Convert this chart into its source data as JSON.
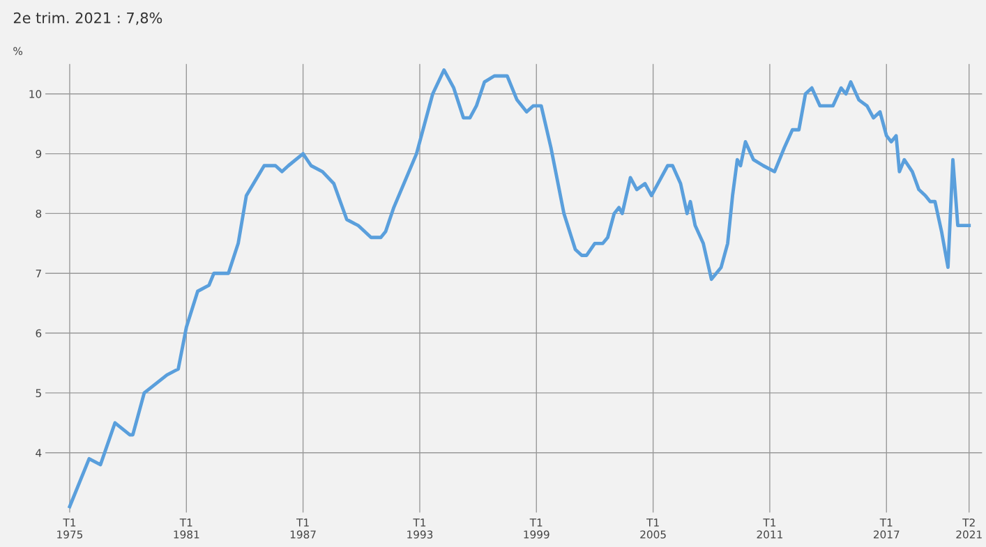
{
  "chart_data": {
    "type": "line",
    "title": "2e trim. 2021 : 7,8%",
    "ylabel": "%",
    "x": [
      "1975-01",
      "1976-01",
      "1976-08",
      "1977-05",
      "1978-02",
      "1978-04",
      "1978-11",
      "1980-01",
      "1980-08",
      "1981-01",
      "1981-08",
      "1982-03",
      "1982-06",
      "1983-03",
      "1983-09",
      "1984-02",
      "1985-01",
      "1985-08",
      "1985-12",
      "1986-04",
      "1987-01",
      "1987-06",
      "1988-01",
      "1988-08",
      "1989-04",
      "1989-11",
      "1990-07",
      "1991-01",
      "1991-04",
      "1991-09",
      "1992-11",
      "1993-09",
      "1994-04",
      "1994-10",
      "1995-04",
      "1995-08",
      "1995-12",
      "1996-05",
      "1996-11",
      "1997-07",
      "1998-01",
      "1998-07",
      "1998-11",
      "1999-04",
      "1999-10",
      "2000-06",
      "2001-01",
      "2001-05",
      "2001-08",
      "2002-01",
      "2002-06",
      "2002-09",
      "2003-01",
      "2003-04",
      "2003-06",
      "2003-11",
      "2004-03",
      "2004-08",
      "2004-12",
      "2005-10",
      "2006-01",
      "2006-06",
      "2006-10",
      "2006-12",
      "2007-03",
      "2007-08",
      "2008-01",
      "2008-07",
      "2008-11",
      "2009-02",
      "2009-05",
      "2009-07",
      "2009-10",
      "2010-03",
      "2010-09",
      "2011-04",
      "2011-10",
      "2012-03",
      "2012-07",
      "2012-11",
      "2013-03",
      "2013-08",
      "2014-04",
      "2014-09",
      "2014-12",
      "2015-03",
      "2015-08",
      "2016-01",
      "2016-05",
      "2016-09",
      "2017-01",
      "2017-04",
      "2017-07",
      "2017-09",
      "2017-12",
      "2018-05",
      "2018-09",
      "2019-01",
      "2019-04",
      "2019-07",
      "2019-11",
      "2020-03",
      "2020-06",
      "2020-09",
      "2021-04"
    ],
    "series": [
      {
        "color": "#5a9fdc",
        "values": [
          3.1,
          3.9,
          3.8,
          4.5,
          4.3,
          4.3,
          5.0,
          5.3,
          5.4,
          6.1,
          6.7,
          6.8,
          7.0,
          7.0,
          7.5,
          8.3,
          8.8,
          8.8,
          8.7,
          8.8,
          9.0,
          8.8,
          8.7,
          8.5,
          7.9,
          7.8,
          7.6,
          7.6,
          7.7,
          8.1,
          9.0,
          10.0,
          10.4,
          10.1,
          9.6,
          9.6,
          9.8,
          10.2,
          10.3,
          10.3,
          9.9,
          9.7,
          9.8,
          9.8,
          9.1,
          8.0,
          7.4,
          7.3,
          7.3,
          7.5,
          7.5,
          7.6,
          8.0,
          8.1,
          8.0,
          8.6,
          8.4,
          8.5,
          8.3,
          8.8,
          8.8,
          8.5,
          8.0,
          8.2,
          7.8,
          7.5,
          6.9,
          7.1,
          7.5,
          8.3,
          8.9,
          8.8,
          9.2,
          8.9,
          8.8,
          8.7,
          9.1,
          9.4,
          9.4,
          10.0,
          10.1,
          9.8,
          9.8,
          10.1,
          10.0,
          10.2,
          9.9,
          9.8,
          9.6,
          9.7,
          9.3,
          9.2,
          9.3,
          8.7,
          8.9,
          8.7,
          8.4,
          8.3,
          8.2,
          8.2,
          7.7,
          7.1,
          8.9,
          7.8,
          7.8
        ]
      }
    ],
    "xlim": [
      "1973-10",
      "2021-12"
    ],
    "ylim": [
      3.0,
      10.5
    ],
    "xticks": [
      {
        "value": "1975-01",
        "label": "T1\n1975"
      },
      {
        "value": "1981-01",
        "label": "T1\n1981"
      },
      {
        "value": "1987-01",
        "label": "T1\n1987"
      },
      {
        "value": "1993-01",
        "label": "T1\n1993"
      },
      {
        "value": "1999-01",
        "label": "T1\n1999"
      },
      {
        "value": "2005-01",
        "label": "T1\n2005"
      },
      {
        "value": "2011-01",
        "label": "T1\n2011"
      },
      {
        "value": "2017-01",
        "label": "T1\n2017"
      },
      {
        "value": "2021-04",
        "label": "T2\n2021"
      }
    ],
    "yticks": [
      4,
      5,
      6,
      7,
      8,
      9,
      10
    ],
    "grid": true,
    "marker": "none",
    "line_style": "solid"
  }
}
